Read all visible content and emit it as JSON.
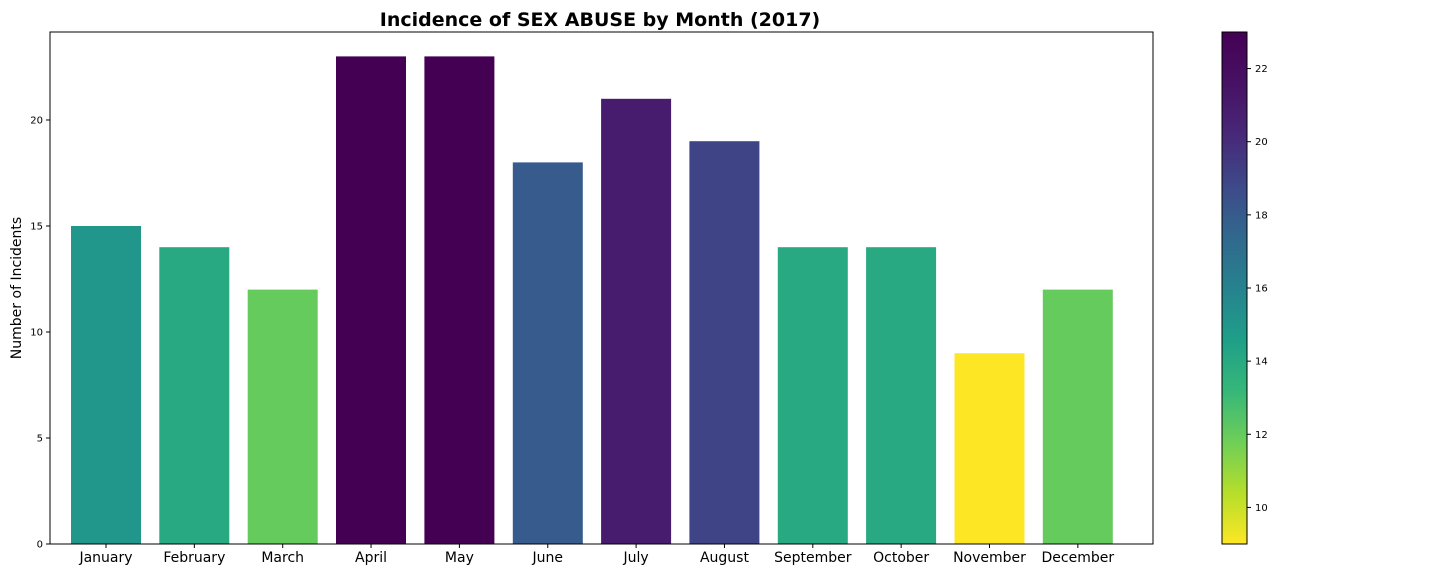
{
  "chart_data": {
    "type": "bar",
    "title": "Incidence of SEX ABUSE by Month (2017)",
    "xlabel": "",
    "ylabel": "Number of Incidents",
    "categories": [
      "January",
      "February",
      "March",
      "April",
      "May",
      "June",
      "July",
      "August",
      "September",
      "October",
      "November",
      "December"
    ],
    "values": [
      15,
      14,
      12,
      23,
      23,
      18,
      21,
      19,
      14,
      14,
      9,
      12
    ],
    "ylim": [
      0,
      24.15
    ],
    "yticks": [
      0,
      5,
      10,
      15,
      20
    ],
    "grid": false,
    "colormap": "viridis_r",
    "colorbar": {
      "range": [
        9,
        23
      ],
      "ticks": [
        10,
        12,
        14,
        16,
        18,
        20,
        22
      ],
      "position": "right"
    }
  }
}
